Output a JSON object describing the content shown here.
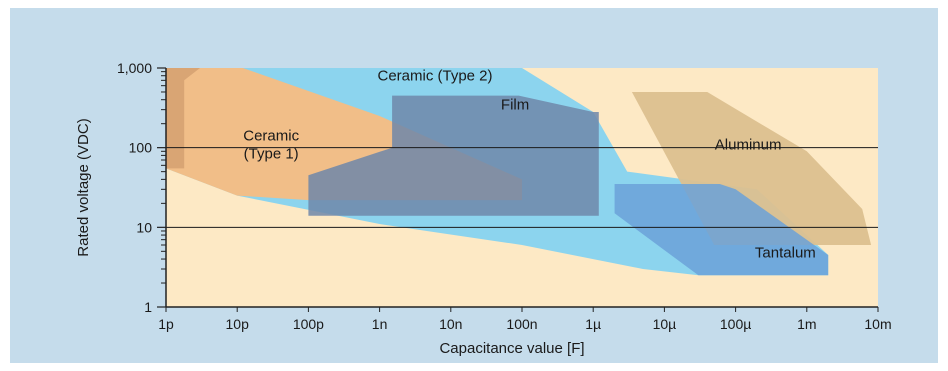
{
  "chart_data": {
    "type": "area",
    "xlabel": "Capacitance value [F]",
    "ylabel": "Rated voltage (VDC)",
    "x_scale": "log",
    "y_scale": "log",
    "xlim": [
      1e-12,
      0.01
    ],
    "ylim": [
      1,
      1000
    ],
    "x_ticks": [
      {
        "value": 1e-12,
        "label": "1p"
      },
      {
        "value": 1e-11,
        "label": "10p"
      },
      {
        "value": 1e-10,
        "label": "100p"
      },
      {
        "value": 1e-09,
        "label": "1n"
      },
      {
        "value": 1e-08,
        "label": "10n"
      },
      {
        "value": 1e-07,
        "label": "100n"
      },
      {
        "value": 1e-06,
        "label": "1µ"
      },
      {
        "value": 1e-05,
        "label": "10µ"
      },
      {
        "value": 0.0001,
        "label": "100µ"
      },
      {
        "value": 0.001,
        "label": "1m"
      },
      {
        "value": 0.01,
        "label": "10m"
      }
    ],
    "y_ticks": [
      {
        "value": 1,
        "label": "1"
      },
      {
        "value": 10,
        "label": "10"
      },
      {
        "value": 100,
        "label": "100"
      },
      {
        "value": 1000,
        "label": "1,000"
      }
    ],
    "gridlines_y": [
      10,
      100
    ],
    "colors": {
      "outer_background": "#b9d4e6",
      "plot_background": "#fde9c5",
      "axis": "#222222"
    },
    "regions": [
      {
        "name": "Ceramic (Type 2)",
        "color": "#7fd1f2",
        "opacity": 0.9,
        "label": "Ceramic (Type 2)",
        "label_at": [
          6e-09,
          700
        ],
        "polygon": [
          [
            1e-12,
            1000
          ],
          [
            1e-07,
            1000
          ],
          [
            1e-06,
            280
          ],
          [
            3e-06,
            50
          ],
          [
            0.0002,
            30
          ],
          [
            0.002,
            4.5
          ],
          [
            0.002,
            2.5
          ],
          [
            3e-05,
            2.5
          ],
          [
            5e-06,
            3
          ],
          [
            1e-07,
            6
          ],
          [
            1e-09,
            11
          ],
          [
            1e-11,
            25
          ],
          [
            1e-12,
            55
          ]
        ]
      },
      {
        "name": "Ceramic (Type 1)",
        "color": "#f7bd82",
        "opacity": 0.95,
        "label": "Ceramic (Type 1)",
        "label_lines": [
          "Ceramic",
          "(Type 1)"
        ],
        "label_at": [
          3e-11,
          110
        ],
        "polygon": [
          [
            1e-12,
            1000
          ],
          [
            1.2e-11,
            1000
          ],
          [
            1e-09,
            250
          ],
          [
            1e-07,
            40
          ],
          [
            1e-07,
            22
          ],
          [
            1e-10,
            22
          ],
          [
            1e-11,
            25
          ],
          [
            1e-12,
            55
          ]
        ]
      },
      {
        "name": "Ceramic (Type 1) edge",
        "color": "#d7a373",
        "opacity": 0.95,
        "label": "",
        "polygon": [
          [
            1e-12,
            1000
          ],
          [
            3e-12,
            1000
          ],
          [
            1.8e-12,
            700
          ],
          [
            1.8e-12,
            55
          ],
          [
            1e-12,
            55
          ]
        ]
      },
      {
        "name": "Film",
        "color": "#6f87a9",
        "opacity": 0.85,
        "label": "Film",
        "label_at": [
          8e-08,
          300
        ],
        "polygon": [
          [
            1.5e-09,
            450
          ],
          [
            9e-08,
            450
          ],
          [
            1e-06,
            280
          ],
          [
            1.2e-06,
            280
          ],
          [
            1.2e-06,
            14
          ],
          [
            1e-10,
            14
          ],
          [
            1e-10,
            45
          ],
          [
            1.5e-09,
            100
          ]
        ]
      },
      {
        "name": "Aluminum",
        "color": "#dcc08f",
        "opacity": 0.95,
        "label": "Aluminum",
        "label_at": [
          0.00015,
          95
        ],
        "polygon": [
          [
            2.5e-06,
            500
          ],
          [
            4e-05,
            500
          ],
          [
            0.001,
            90
          ],
          [
            0.006,
            17
          ],
          [
            0.008,
            6
          ],
          [
            5e-05,
            6
          ],
          [
            3.5e-06,
            500
          ]
        ]
      },
      {
        "name": "Tantalum",
        "color": "#6ba1d8",
        "opacity": 0.85,
        "label": "Tantalum",
        "label_at": [
          0.0005,
          4.2
        ],
        "polygon": [
          [
            2e-06,
            35
          ],
          [
            6e-05,
            35
          ],
          [
            0.0001,
            30
          ],
          [
            0.002,
            4.5
          ],
          [
            0.002,
            2.5
          ],
          [
            3e-05,
            2.5
          ],
          [
            2e-06,
            15
          ]
        ]
      }
    ]
  }
}
